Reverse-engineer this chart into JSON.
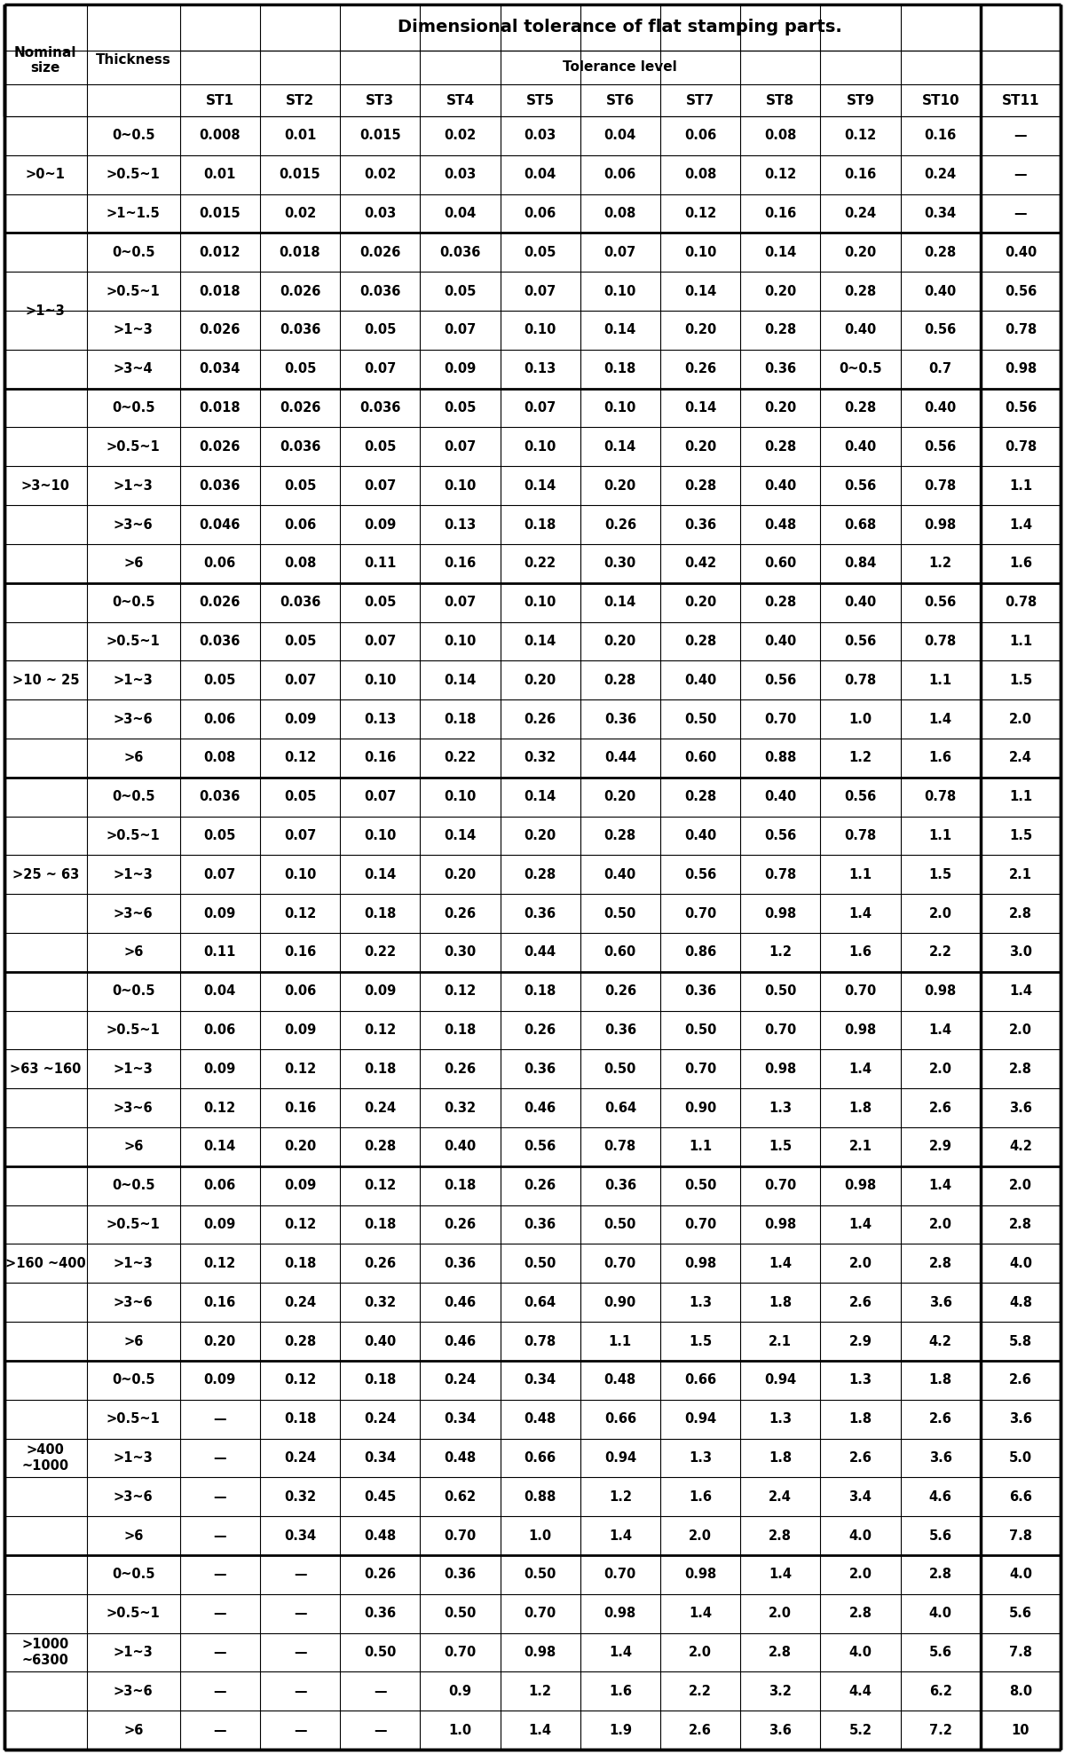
{
  "title": "Dimensional tolerance of flat stamping parts.",
  "col_header": [
    "ST1",
    "ST2",
    "ST3",
    "ST4",
    "ST5",
    "ST6",
    "ST7",
    "ST8",
    "ST9",
    "ST10",
    "ST11"
  ],
  "rows": [
    {
      "nominal": "",
      "thickness": "0~0.5",
      "vals": [
        "0.008",
        "0.01",
        "0.015",
        "0.02",
        "0.03",
        "0.04",
        "0.06",
        "0.08",
        "0.12",
        "0.16",
        "—"
      ]
    },
    {
      "nominal": ">0~1",
      "thickness": ">0.5~1",
      "vals": [
        "0.01",
        "0.015",
        "0.02",
        "0.03",
        "0.04",
        "0.06",
        "0.08",
        "0.12",
        "0.16",
        "0.24",
        "—"
      ]
    },
    {
      "nominal": "",
      "thickness": ">1~1.5",
      "vals": [
        "0.015",
        "0.02",
        "0.03",
        "0.04",
        "0.06",
        "0.08",
        "0.12",
        "0.16",
        "0.24",
        "0.34",
        "—"
      ]
    },
    {
      "nominal": "",
      "thickness": "0~0.5",
      "vals": [
        "0.012",
        "0.018",
        "0.026",
        "0.036",
        "0.05",
        "0.07",
        "0.10",
        "0.14",
        "0.20",
        "0.28",
        "0.40"
      ]
    },
    {
      "nominal": ">1~3",
      "thickness": ">0.5~1",
      "vals": [
        "0.018",
        "0.026",
        "0.036",
        "0.05",
        "0.07",
        "0.10",
        "0.14",
        "0.20",
        "0.28",
        "0.40",
        "0.56"
      ]
    },
    {
      "nominal": "",
      "thickness": ">1~3",
      "vals": [
        "0.026",
        "0.036",
        "0.05",
        "0.07",
        "0.10",
        "0.14",
        "0.20",
        "0.28",
        "0.40",
        "0.56",
        "0.78"
      ]
    },
    {
      "nominal": "",
      "thickness": ">3~4",
      "vals": [
        "0.034",
        "0.05",
        "0.07",
        "0.09",
        "0.13",
        "0.18",
        "0.26",
        "0.36",
        "0~0.5",
        "0.7",
        "0.98"
      ]
    },
    {
      "nominal": "",
      "thickness": "0~0.5",
      "vals": [
        "0.018",
        "0.026",
        "0.036",
        "0.05",
        "0.07",
        "0.10",
        "0.14",
        "0.20",
        "0.28",
        "0.40",
        "0.56"
      ]
    },
    {
      "nominal": "",
      "thickness": ">0.5~1",
      "vals": [
        "0.026",
        "0.036",
        "0.05",
        "0.07",
        "0.10",
        "0.14",
        "0.20",
        "0.28",
        "0.40",
        "0.56",
        "0.78"
      ]
    },
    {
      "nominal": ">3~10",
      "thickness": ">1~3",
      "vals": [
        "0.036",
        "0.05",
        "0.07",
        "0.10",
        "0.14",
        "0.20",
        "0.28",
        "0.40",
        "0.56",
        "0.78",
        "1.1"
      ]
    },
    {
      "nominal": "",
      "thickness": ">3~6",
      "vals": [
        "0.046",
        "0.06",
        "0.09",
        "0.13",
        "0.18",
        "0.26",
        "0.36",
        "0.48",
        "0.68",
        "0.98",
        "1.4"
      ]
    },
    {
      "nominal": "",
      "thickness": ">6",
      "vals": [
        "0.06",
        "0.08",
        "0.11",
        "0.16",
        "0.22",
        "0.30",
        "0.42",
        "0.60",
        "0.84",
        "1.2",
        "1.6"
      ]
    },
    {
      "nominal": "",
      "thickness": "0~0.5",
      "vals": [
        "0.026",
        "0.036",
        "0.05",
        "0.07",
        "0.10",
        "0.14",
        "0.20",
        "0.28",
        "0.40",
        "0.56",
        "0.78"
      ]
    },
    {
      "nominal": "",
      "thickness": ">0.5~1",
      "vals": [
        "0.036",
        "0.05",
        "0.07",
        "0.10",
        "0.14",
        "0.20",
        "0.28",
        "0.40",
        "0.56",
        "0.78",
        "1.1"
      ]
    },
    {
      "nominal": ">10~25",
      "thickness": ">1~3",
      "vals": [
        "0.05",
        "0.07",
        "0.10",
        "0.14",
        "0.20",
        "0.28",
        "0.40",
        "0.56",
        "0.78",
        "1.1",
        "1.5"
      ]
    },
    {
      "nominal": "",
      "thickness": ">3~6",
      "vals": [
        "0.06",
        "0.09",
        "0.13",
        "0.18",
        "0.26",
        "0.36",
        "0.50",
        "0.70",
        "1.0",
        "1.4",
        "2.0"
      ]
    },
    {
      "nominal": "",
      "thickness": ">6",
      "vals": [
        "0.08",
        "0.12",
        "0.16",
        "0.22",
        "0.32",
        "0.44",
        "0.60",
        "0.88",
        "1.2",
        "1.6",
        "2.4"
      ]
    },
    {
      "nominal": "",
      "thickness": "0~0.5",
      "vals": [
        "0.036",
        "0.05",
        "0.07",
        "0.10",
        "0.14",
        "0.20",
        "0.28",
        "0.40",
        "0.56",
        "0.78",
        "1.1"
      ]
    },
    {
      "nominal": "",
      "thickness": ">0.5~1",
      "vals": [
        "0.05",
        "0.07",
        "0.10",
        "0.14",
        "0.20",
        "0.28",
        "0.40",
        "0.56",
        "0.78",
        "1.1",
        "1.5"
      ]
    },
    {
      "nominal": ">25~63",
      "thickness": ">1~3",
      "vals": [
        "0.07",
        "0.10",
        "0.14",
        "0.20",
        "0.28",
        "0.40",
        "0.56",
        "0.78",
        "1.1",
        "1.5",
        "2.1"
      ]
    },
    {
      "nominal": "",
      "thickness": ">3~6",
      "vals": [
        "0.09",
        "0.12",
        "0.18",
        "0.26",
        "0.36",
        "0.50",
        "0.70",
        "0.98",
        "1.4",
        "2.0",
        "2.8"
      ]
    },
    {
      "nominal": "",
      "thickness": ">6",
      "vals": [
        "0.11",
        "0.16",
        "0.22",
        "0.30",
        "0.44",
        "0.60",
        "0.86",
        "1.2",
        "1.6",
        "2.2",
        "3.0"
      ]
    },
    {
      "nominal": "",
      "thickness": "0~0.5",
      "vals": [
        "0.04",
        "0.06",
        "0.09",
        "0.12",
        "0.18",
        "0.26",
        "0.36",
        "0.50",
        "0.70",
        "0.98",
        "1.4"
      ]
    },
    {
      "nominal": "",
      "thickness": ">0.5~1",
      "vals": [
        "0.06",
        "0.09",
        "0.12",
        "0.18",
        "0.26",
        "0.36",
        "0.50",
        "0.70",
        "0.98",
        "1.4",
        "2.0"
      ]
    },
    {
      "nominal": ">63~160",
      "thickness": ">1~3",
      "vals": [
        "0.09",
        "0.12",
        "0.18",
        "0.26",
        "0.36",
        "0.50",
        "0.70",
        "0.98",
        "1.4",
        "2.0",
        "2.8"
      ]
    },
    {
      "nominal": "",
      "thickness": ">3~6",
      "vals": [
        "0.12",
        "0.16",
        "0.24",
        "0.32",
        "0.46",
        "0.64",
        "0.90",
        "1.3",
        "1.8",
        "2.6",
        "3.6"
      ]
    },
    {
      "nominal": "",
      "thickness": ">6",
      "vals": [
        "0.14",
        "0.20",
        "0.28",
        "0.40",
        "0.56",
        "0.78",
        "1.1",
        "1.5",
        "2.1",
        "2.9",
        "4.2"
      ]
    },
    {
      "nominal": "",
      "thickness": "0~0.5",
      "vals": [
        "0.06",
        "0.09",
        "0.12",
        "0.18",
        "0.26",
        "0.36",
        "0.50",
        "0.70",
        "0.98",
        "1.4",
        "2.0"
      ]
    },
    {
      "nominal": "",
      "thickness": ">0.5~1",
      "vals": [
        "0.09",
        "0.12",
        "0.18",
        "0.26",
        "0.36",
        "0.50",
        "0.70",
        "0.98",
        "1.4",
        "2.0",
        "2.8"
      ]
    },
    {
      "nominal": ">160~400",
      "thickness": ">1~3",
      "vals": [
        "0.12",
        "0.18",
        "0.26",
        "0.36",
        "0.50",
        "0.70",
        "0.98",
        "1.4",
        "2.0",
        "2.8",
        "4.0"
      ]
    },
    {
      "nominal": "",
      "thickness": ">3~6",
      "vals": [
        "0.16",
        "0.24",
        "0.32",
        "0.46",
        "0.64",
        "0.90",
        "1.3",
        "1.8",
        "2.6",
        "3.6",
        "4.8"
      ]
    },
    {
      "nominal": "",
      "thickness": ">6",
      "vals": [
        "0.20",
        "0.28",
        "0.40",
        "0.46",
        "0.78",
        "1.1",
        "1.5",
        "2.1",
        "2.9",
        "4.2",
        "5.8"
      ]
    },
    {
      "nominal": "",
      "thickness": "0~0.5",
      "vals": [
        "0.09",
        "0.12",
        "0.18",
        "0.24",
        "0.34",
        "0.48",
        "0.66",
        "0.94",
        "1.3",
        "1.8",
        "2.6"
      ]
    },
    {
      "nominal": "",
      "thickness": ">0.5~1",
      "vals": [
        "—",
        "0.18",
        "0.24",
        "0.34",
        "0.48",
        "0.66",
        "0.94",
        "1.3",
        "1.8",
        "2.6",
        "3.6"
      ]
    },
    {
      "nominal": ">400~1000",
      "thickness": ">1~3",
      "vals": [
        "—",
        "0.24",
        "0.34",
        "0.48",
        "0.66",
        "0.94",
        "1.3",
        "1.8",
        "2.6",
        "3.6",
        "5.0"
      ]
    },
    {
      "nominal": "",
      "thickness": ">3~6",
      "vals": [
        "—",
        "0.32",
        "0.45",
        "0.62",
        "0.88",
        "1.2",
        "1.6",
        "2.4",
        "3.4",
        "4.6",
        "6.6"
      ]
    },
    {
      "nominal": "",
      "thickness": ">6",
      "vals": [
        "—",
        "0.34",
        "0.48",
        "0.70",
        "1.0",
        "1.4",
        "2.0",
        "2.8",
        "4.0",
        "5.6",
        "7.8"
      ]
    },
    {
      "nominal": "",
      "thickness": "0~0.5",
      "vals": [
        "—",
        "—",
        "0.26",
        "0.36",
        "0.50",
        "0.70",
        "0.98",
        "1.4",
        "2.0",
        "2.8",
        "4.0"
      ]
    },
    {
      "nominal": "",
      "thickness": ">0.5~1",
      "vals": [
        "—",
        "—",
        "0.36",
        "0.50",
        "0.70",
        "0.98",
        "1.4",
        "2.0",
        "2.8",
        "4.0",
        "5.6"
      ]
    },
    {
      "nominal": ">1000~6300",
      "thickness": ">1~3",
      "vals": [
        "—",
        "—",
        "0.50",
        "0.70",
        "0.98",
        "1.4",
        "2.0",
        "2.8",
        "4.0",
        "5.6",
        "7.8"
      ]
    },
    {
      "nominal": "",
      "thickness": ">3~6",
      "vals": [
        "—",
        "—",
        "—",
        "0.9",
        "1.2",
        "1.6",
        "2.2",
        "3.2",
        "4.4",
        "6.2",
        "8.0"
      ]
    },
    {
      "nominal": "",
      "thickness": ">6",
      "vals": [
        "—",
        "—",
        "—",
        "1.0",
        "1.4",
        "1.9",
        "2.6",
        "3.6",
        "5.2",
        "7.2",
        "10"
      ]
    }
  ],
  "nominal_groups": [
    {
      "label": "",
      "rows": [
        0
      ],
      "display": ""
    },
    {
      "label": ">0~1",
      "rows": [
        0,
        1,
        2
      ],
      "display": ">0~1"
    },
    {
      "label": ">1~3",
      "rows": [
        3,
        4,
        5,
        6
      ],
      "display": ">1~3"
    },
    {
      "label": ">3~10",
      "rows": [
        7,
        8,
        9,
        10,
        11
      ],
      "display": ">3~10"
    },
    {
      "label": ">10~25",
      "rows": [
        12,
        13,
        14,
        15,
        16
      ],
      "display": ">10 ~ 25"
    },
    {
      "label": ">25~63",
      "rows": [
        17,
        18,
        19,
        20,
        21
      ],
      "display": ">25 ~ 63"
    },
    {
      "label": ">63~160",
      "rows": [
        22,
        23,
        24,
        25,
        26
      ],
      "display": ">63 ~160"
    },
    {
      "label": ">160~400",
      "rows": [
        27,
        28,
        29,
        30,
        31
      ],
      "display": ">160 ~400"
    },
    {
      "label": ">400~1000",
      "rows": [
        32,
        33,
        34,
        35,
        36
      ],
      "display": ">400\n~1000"
    },
    {
      "label": ">1000~6300",
      "rows": [
        37,
        38,
        39,
        40,
        41
      ],
      "display": ">1000\n~6300"
    }
  ],
  "group_boundaries": [
    0,
    3,
    7,
    12,
    17,
    22,
    27,
    32,
    37
  ],
  "background_color": "#ffffff",
  "text_color": "#000000",
  "line_color": "#000000",
  "font_size": 10.5,
  "header_font_size": 11,
  "title_font_size": 14
}
